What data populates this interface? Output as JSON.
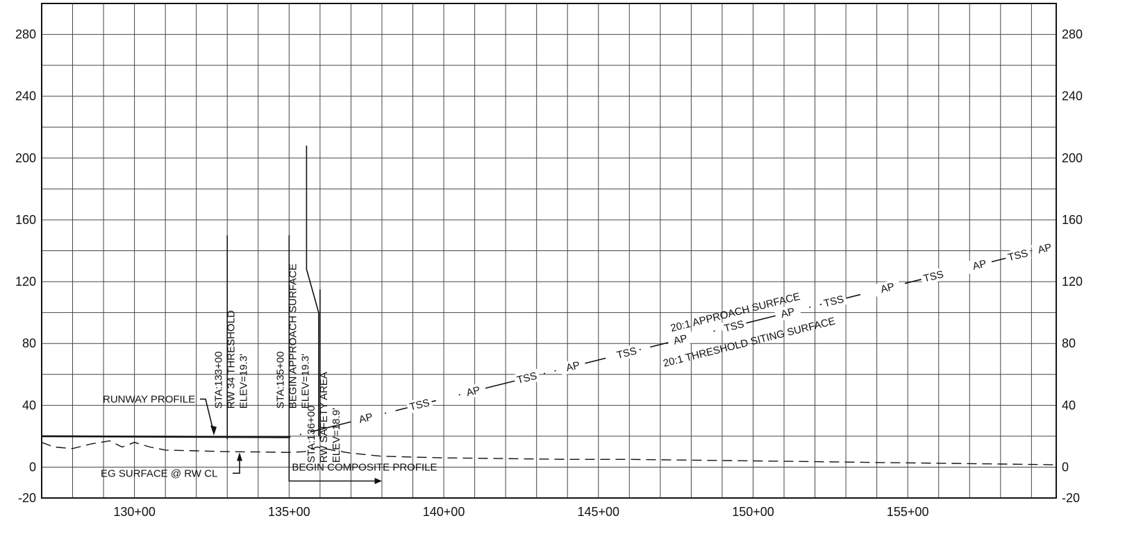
{
  "axes": {
    "elevation_ticks": [
      "280",
      "240",
      "200",
      "160",
      "120",
      "80",
      "40",
      "0",
      "-20"
    ],
    "station_ticks": [
      "130+00",
      "135+00",
      "140+00",
      "145+00",
      "150+00",
      "155+00"
    ]
  },
  "station_markers": [
    {
      "id": "sta-133",
      "station": 13300,
      "top": 150,
      "lines": [
        "STA:133+00",
        "RW 34 THRESHOLD",
        "ELEV=19.3'"
      ]
    },
    {
      "id": "sta-135",
      "station": 13500,
      "top": 150,
      "lines": [
        "STA:135+00",
        "BEGIN APPROACH SURFACE",
        "ELEV=19.3'"
      ]
    },
    {
      "id": "sta-136",
      "station": 13600,
      "top": 115,
      "lines": [
        "STA:136+00",
        "RW SAFETY AREA",
        "ELEV=18.9'"
      ]
    }
  ],
  "callouts": {
    "runway_profile": "RUNWAY PROFILE",
    "eg_surface": "EG SURFACE @ RW CL",
    "begin_composite": "BEGIN COMPOSITE PROFILE",
    "approach_surface": "20:1 APPROACH SURFACE",
    "threshold_siting": "20:1 THRESHOLD SITING SURFACE"
  },
  "surface_line": {
    "labels_ap": "AP",
    "labels_tss": "TSS",
    "slope": "20:1",
    "start": {
      "station": 13500,
      "elev": 19.3
    },
    "end": {
      "station": 15980,
      "elev": 143.3
    }
  },
  "chart_data": {
    "type": "line",
    "x_range": [
      12700,
      15980
    ],
    "y_range": [
      -20,
      300
    ],
    "series": [
      {
        "id": "runway",
        "points": [
          [
            12700,
            20
          ],
          [
            13500,
            19.3
          ]
        ]
      },
      {
        "id": "approach",
        "points": [
          [
            13500,
            19.3
          ],
          [
            15980,
            143.3
          ]
        ]
      },
      {
        "id": "eg",
        "points": [
          [
            12700,
            16
          ],
          [
            12740,
            13
          ],
          [
            12800,
            12
          ],
          [
            12860,
            15
          ],
          [
            12920,
            17
          ],
          [
            12960,
            13
          ],
          [
            13000,
            16
          ],
          [
            13050,
            13
          ],
          [
            13100,
            11
          ],
          [
            13200,
            10.5
          ],
          [
            13300,
            10
          ],
          [
            13400,
            9.8
          ],
          [
            13500,
            9.5
          ],
          [
            13550,
            10
          ],
          [
            13590,
            13
          ],
          [
            13640,
            11
          ],
          [
            13700,
            9
          ],
          [
            13800,
            7
          ],
          [
            13900,
            6.5
          ],
          [
            14000,
            6
          ],
          [
            14200,
            5.5
          ],
          [
            14400,
            5
          ],
          [
            14600,
            5
          ],
          [
            14800,
            4.5
          ],
          [
            15000,
            4
          ],
          [
            15200,
            3.5
          ],
          [
            15400,
            3
          ],
          [
            15600,
            2.5
          ],
          [
            15800,
            2
          ],
          [
            15980,
            1.5
          ]
        ]
      }
    ]
  }
}
